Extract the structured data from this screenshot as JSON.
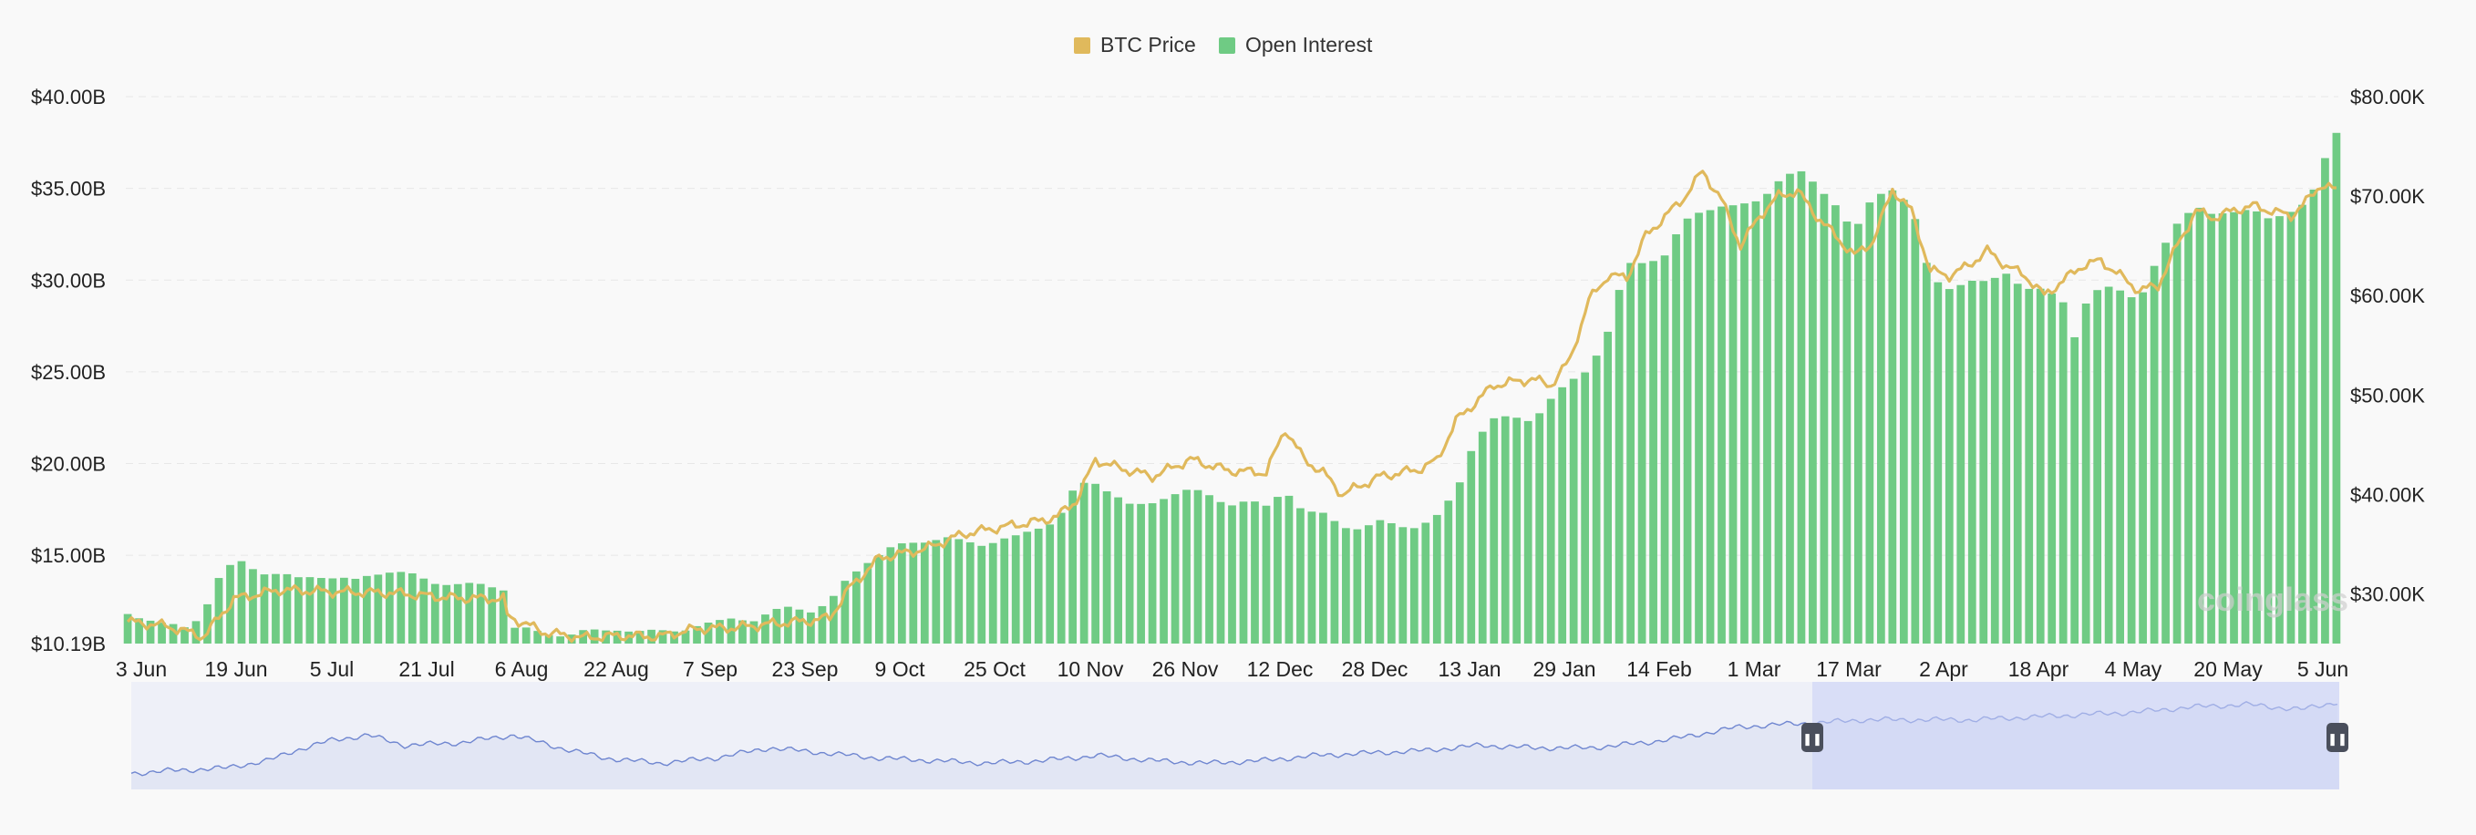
{
  "legend": [
    {
      "label": "BTC Price",
      "color": "#e0b95c"
    },
    {
      "label": "Open Interest",
      "color": "#6fcb84"
    }
  ],
  "watermark": "coinglass",
  "chart_data": {
    "type": "bar",
    "left_axis": {
      "ticks": [
        "$40.00B",
        "$35.00B",
        "$30.00B",
        "$25.00B",
        "$20.00B",
        "$15.00B",
        "$10.19B"
      ],
      "range": [
        10.19,
        40.0
      ]
    },
    "right_axis": {
      "ticks": [
        "$80.00K",
        "$70.00K",
        "$60.00K",
        "$50.00K",
        "$40.00K",
        "$30.00K"
      ],
      "range": [
        25000,
        80000
      ]
    },
    "x_ticks": [
      "3 Jun",
      "19 Jun",
      "5 Jul",
      "21 Jul",
      "6 Aug",
      "22 Aug",
      "7 Sep",
      "23 Sep",
      "9 Oct",
      "25 Oct",
      "10 Nov",
      "26 Nov",
      "12 Dec",
      "28 Dec",
      "13 Jan",
      "29 Jan",
      "14 Feb",
      "1 Mar",
      "17 Mar",
      "2 Apr",
      "18 Apr",
      "4 May",
      "20 May",
      "5 Jun"
    ],
    "grid": true,
    "legend_position": "top-center",
    "series": [
      {
        "name": "Open Interest",
        "type": "bar",
        "axis": "left",
        "unit": "B",
        "color": "#6fcb84"
      },
      {
        "name": "BTC Price",
        "type": "line",
        "axis": "right",
        "unit": "K",
        "color": "#e0b95c"
      }
    ],
    "keypoints": {
      "open_interest": [
        [
          0,
          11.8
        ],
        [
          5,
          11.6
        ],
        [
          10,
          11.2
        ],
        [
          16,
          11.0
        ],
        [
          20,
          12.0
        ],
        [
          25,
          14.2
        ],
        [
          30,
          14.6
        ],
        [
          35,
          14.1
        ],
        [
          40,
          14.0
        ],
        [
          45,
          13.7
        ],
        [
          50,
          13.9
        ],
        [
          55,
          13.8
        ],
        [
          60,
          13.6
        ],
        [
          65,
          14.0
        ],
        [
          70,
          14.2
        ],
        [
          75,
          13.9
        ],
        [
          80,
          13.5
        ],
        [
          85,
          13.5
        ],
        [
          90,
          13.4
        ],
        [
          95,
          13.3
        ],
        [
          99,
          13.2
        ],
        [
          100,
          11.2
        ],
        [
          105,
          11.0
        ],
        [
          110,
          10.6
        ],
        [
          115,
          10.7
        ],
        [
          120,
          10.9
        ],
        [
          125,
          10.8
        ],
        [
          130,
          11.0
        ],
        [
          135,
          10.9
        ],
        [
          140,
          10.8
        ],
        [
          145,
          10.9
        ],
        [
          150,
          11.2
        ],
        [
          155,
          11.3
        ],
        [
          160,
          11.6
        ],
        [
          165,
          11.5
        ],
        [
          170,
          11.9
        ],
        [
          175,
          12.2
        ],
        [
          180,
          12.0
        ],
        [
          185,
          12.4
        ],
        [
          190,
          13.8
        ],
        [
          195,
          14.7
        ],
        [
          200,
          15.3
        ],
        [
          205,
          15.6
        ],
        [
          210,
          15.8
        ],
        [
          215,
          16.0
        ],
        [
          220,
          15.7
        ],
        [
          225,
          15.6
        ],
        [
          230,
          15.9
        ],
        [
          235,
          16.0
        ],
        [
          240,
          16.5
        ],
        [
          245,
          17.0
        ],
        [
          250,
          18.8
        ],
        [
          255,
          18.9
        ],
        [
          260,
          18.4
        ],
        [
          265,
          17.6
        ],
        [
          270,
          17.8
        ],
        [
          275,
          18.4
        ],
        [
          280,
          18.6
        ],
        [
          285,
          18.2
        ],
        [
          290,
          17.8
        ],
        [
          295,
          18.0
        ],
        [
          300,
          17.6
        ],
        [
          305,
          18.6
        ],
        [
          310,
          17.4
        ],
        [
          315,
          17.2
        ],
        [
          320,
          16.6
        ],
        [
          325,
          16.5
        ],
        [
          330,
          16.8
        ],
        [
          335,
          16.6
        ],
        [
          340,
          16.6
        ],
        [
          345,
          17.1
        ],
        [
          350,
          18.4
        ],
        [
          355,
          21.4
        ],
        [
          360,
          22.4
        ],
        [
          365,
          22.5
        ],
        [
          370,
          22.4
        ],
        [
          375,
          23.5
        ],
        [
          380,
          24.4
        ],
        [
          385,
          25.2
        ],
        [
          390,
          27.2
        ],
        [
          395,
          30.8
        ],
        [
          400,
          31.0
        ],
        [
          405,
          31.4
        ],
        [
          410,
          33.1
        ],
        [
          415,
          33.8
        ],
        [
          420,
          34.1
        ],
        [
          425,
          34.0
        ],
        [
          430,
          34.3
        ],
        [
          435,
          35.5
        ],
        [
          440,
          36.0
        ],
        [
          445,
          35.1
        ],
        [
          450,
          34.2
        ],
        [
          455,
          32.6
        ],
        [
          460,
          34.5
        ],
        [
          465,
          35.0
        ],
        [
          470,
          34.1
        ],
        [
          475,
          30.0
        ],
        [
          480,
          29.6
        ],
        [
          485,
          30.0
        ],
        [
          490,
          29.8
        ],
        [
          495,
          30.4
        ],
        [
          500,
          29.6
        ],
        [
          505,
          29.4
        ],
        [
          510,
          28.8
        ],
        [
          513,
          27.0
        ],
        [
          515,
          28.6
        ],
        [
          520,
          29.6
        ],
        [
          525,
          29.4
        ],
        [
          530,
          29.0
        ],
        [
          535,
          31.2
        ],
        [
          540,
          33.0
        ],
        [
          545,
          34.2
        ],
        [
          550,
          33.5
        ],
        [
          555,
          33.6
        ],
        [
          560,
          34.0
        ],
        [
          565,
          33.3
        ],
        [
          570,
          33.6
        ],
        [
          575,
          34.4
        ],
        [
          578,
          36.3
        ],
        [
          580,
          37.2
        ],
        [
          582,
          38.0
        ]
      ],
      "btc_price": [
        [
          0,
          27.2
        ],
        [
          10,
          26.8
        ],
        [
          20,
          25.7
        ],
        [
          28,
          29.5
        ],
        [
          40,
          30.4
        ],
        [
          55,
          30.2
        ],
        [
          70,
          30.1
        ],
        [
          85,
          29.6
        ],
        [
          99,
          29.5
        ],
        [
          100,
          27.8
        ],
        [
          110,
          26.1
        ],
        [
          120,
          25.6
        ],
        [
          130,
          25.8
        ],
        [
          140,
          25.7
        ],
        [
          150,
          26.5
        ],
        [
          160,
          26.6
        ],
        [
          170,
          27.0
        ],
        [
          180,
          27.3
        ],
        [
          185,
          27.6
        ],
        [
          190,
          30.5
        ],
        [
          198,
          33.6
        ],
        [
          210,
          34.5
        ],
        [
          220,
          36.0
        ],
        [
          230,
          36.7
        ],
        [
          240,
          37.3
        ],
        [
          245,
          37.8
        ],
        [
          250,
          39.4
        ],
        [
          255,
          43.5
        ],
        [
          260,
          42.8
        ],
        [
          270,
          41.8
        ],
        [
          280,
          43.5
        ],
        [
          290,
          42.4
        ],
        [
          300,
          42.2
        ],
        [
          305,
          46.6
        ],
        [
          310,
          43.5
        ],
        [
          315,
          42.2
        ],
        [
          320,
          40.0
        ],
        [
          330,
          41.8
        ],
        [
          340,
          42.5
        ],
        [
          345,
          43.4
        ],
        [
          350,
          47.4
        ],
        [
          360,
          51.0
        ],
        [
          370,
          51.6
        ],
        [
          375,
          51.0
        ],
        [
          380,
          53.5
        ],
        [
          385,
          59.5
        ],
        [
          390,
          62.0
        ],
        [
          395,
          61.8
        ],
        [
          400,
          66.0
        ],
        [
          410,
          69.8
        ],
        [
          415,
          72.5
        ],
        [
          420,
          69.6
        ],
        [
          425,
          65.0
        ],
        [
          430,
          68.0
        ],
        [
          435,
          70.0
        ],
        [
          440,
          70.5
        ],
        [
          445,
          68.0
        ],
        [
          450,
          66.0
        ],
        [
          455,
          64.0
        ],
        [
          460,
          65.5
        ],
        [
          465,
          70.7
        ],
        [
          470,
          68.5
        ],
        [
          475,
          62.5
        ],
        [
          480,
          62.0
        ],
        [
          485,
          63.0
        ],
        [
          490,
          64.5
        ],
        [
          495,
          63.0
        ],
        [
          500,
          62.0
        ],
        [
          505,
          60.0
        ],
        [
          510,
          61.5
        ],
        [
          515,
          63.0
        ],
        [
          520,
          63.5
        ],
        [
          525,
          62.0
        ],
        [
          530,
          60.5
        ],
        [
          535,
          61.0
        ],
        [
          540,
          65.0
        ],
        [
          545,
          68.5
        ],
        [
          550,
          67.8
        ],
        [
          555,
          68.6
        ],
        [
          560,
          69.0
        ],
        [
          565,
          68.5
        ],
        [
          570,
          68.0
        ],
        [
          575,
          69.8
        ],
        [
          578,
          71.2
        ],
        [
          580,
          70.9
        ],
        [
          582,
          70.5
        ]
      ]
    }
  },
  "navigator": {
    "left_handle": "❚❚",
    "right_handle": "❚❚"
  }
}
